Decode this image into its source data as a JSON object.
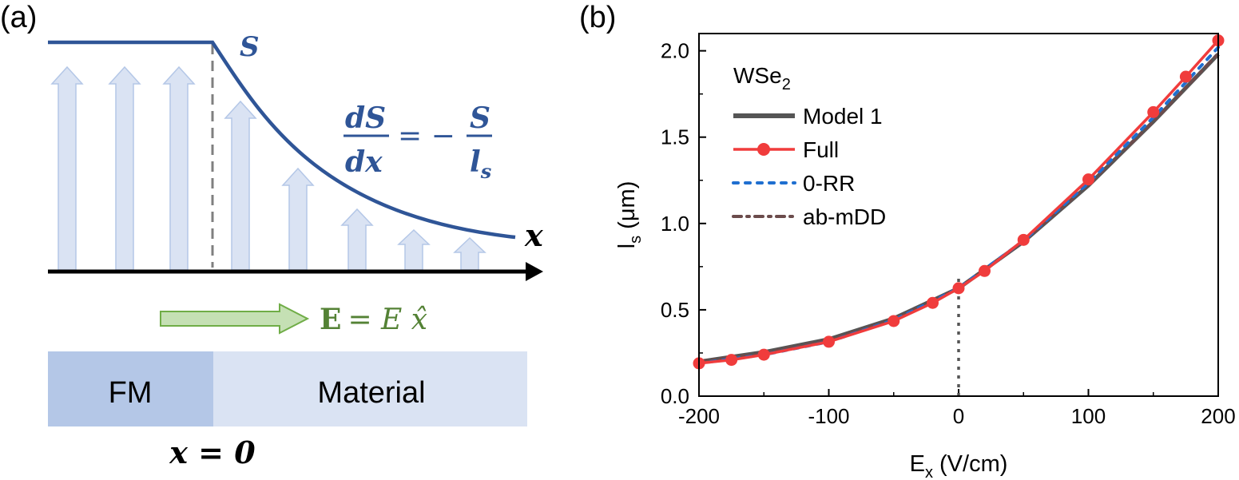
{
  "panel_a": {
    "label": "(a)",
    "curve_label": "S",
    "equation": {
      "num1": "dS",
      "den1": "dx",
      "eq": "= −",
      "num2": "S",
      "den2": "l",
      "den2_sub": "s"
    },
    "axis_label": "x",
    "field_label_bold": "E",
    "field_label_rest": "= E x̂",
    "box_left": "FM",
    "box_right": "Material",
    "origin_label": "x = 0",
    "colors": {
      "curve": "#2f5597",
      "arrows": "#dae3f3",
      "arrow_stroke": "#b4c7e7",
      "fm_box": "#b4c7e7",
      "material_box": "#dae3f3",
      "field_arrow": "#c5e0b4",
      "field_arrow_stroke": "#70ad47",
      "field_text": "#548235"
    }
  },
  "chart_data": {
    "panel_label": "(b)",
    "type": "line",
    "xlabel": "E",
    "xlabel_sub": "x",
    "xlabel_unit": " (V/cm)",
    "ylabel": "l",
    "ylabel_sub": "s",
    "ylabel_unit": " (μm)",
    "xlim": [
      -200,
      200
    ],
    "ylim": [
      0,
      2.1
    ],
    "xticks": [
      -200,
      -100,
      0,
      100,
      200
    ],
    "xtick_labels": [
      "-200",
      "-100",
      "0",
      "100",
      "200"
    ],
    "yticks": [
      0.0,
      0.5,
      1.0,
      1.5,
      2.0
    ],
    "ytick_labels": [
      "0.0",
      "0.5",
      "1.0",
      "1.5",
      "2.0"
    ],
    "vline_x": 0,
    "vline_ymax": 0.7,
    "legend_title": "WSe",
    "legend_title_sub": "2",
    "legend_position": "top-left",
    "series": [
      {
        "name": "Model 1",
        "style": "solid",
        "color": "#555555",
        "x": [
          -200,
          -150,
          -100,
          -50,
          0,
          50,
          100,
          150,
          200
        ],
        "y": [
          0.2,
          0.255,
          0.33,
          0.45,
          0.625,
          0.895,
          1.22,
          1.59,
          1.98
        ]
      },
      {
        "name": "Full",
        "style": "solid-markers",
        "color": "#f03c3c",
        "x": [
          -200,
          -175,
          -150,
          -100,
          -50,
          -20,
          0,
          20,
          50,
          100,
          150,
          175,
          200
        ],
        "y": [
          0.19,
          0.21,
          0.24,
          0.315,
          0.435,
          0.54,
          0.625,
          0.725,
          0.905,
          1.255,
          1.645,
          1.85,
          2.06
        ]
      },
      {
        "name": "0-RR",
        "style": "dotted",
        "color": "#1f6fd0",
        "x": [
          -200,
          -150,
          -100,
          -50,
          0,
          50,
          100,
          150,
          200
        ],
        "y": [
          0.19,
          0.24,
          0.315,
          0.44,
          0.625,
          0.9,
          1.235,
          1.615,
          2.02
        ]
      },
      {
        "name": "ab-mDD",
        "style": "dashdot",
        "color": "#6b4c4c",
        "x": [
          -200,
          -150,
          -100,
          -50,
          0,
          50,
          100,
          150,
          200
        ],
        "y": [
          0.2,
          0.25,
          0.325,
          0.445,
          0.625,
          0.895,
          1.225,
          1.59,
          1.985
        ]
      }
    ]
  }
}
